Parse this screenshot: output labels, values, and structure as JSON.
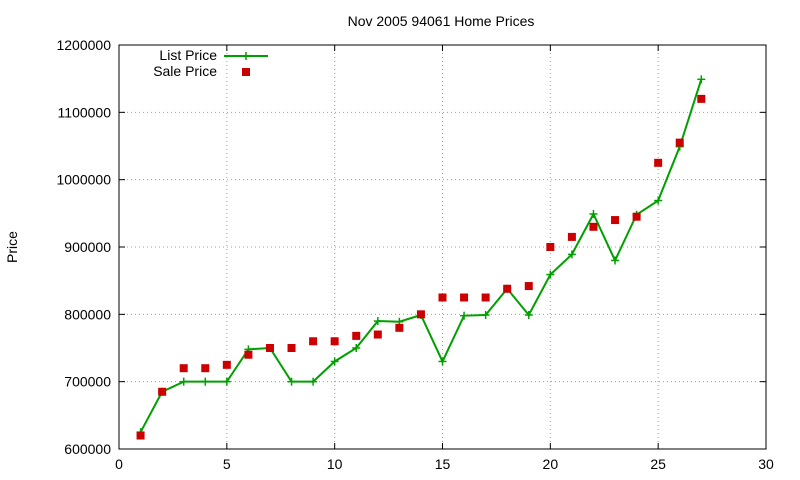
{
  "chart_data": {
    "type": "line",
    "title": "Nov 2005 94061 Home Prices",
    "xlabel": "",
    "ylabel": "Price",
    "xlim": [
      0,
      30
    ],
    "ylim": [
      600000,
      1200000
    ],
    "x_ticks": [
      0,
      5,
      10,
      15,
      20,
      25,
      30
    ],
    "y_ticks": [
      600000,
      700000,
      800000,
      900000,
      1000000,
      1100000,
      1200000
    ],
    "grid": true,
    "legend_position": "top-left",
    "series": [
      {
        "name": "List Price",
        "style": "linespoints",
        "marker": "plus",
        "color": "#00a000",
        "x": [
          1,
          2,
          3,
          4,
          5,
          6,
          7,
          8,
          9,
          10,
          11,
          12,
          13,
          14,
          15,
          16,
          17,
          18,
          19,
          20,
          21,
          22,
          23,
          24,
          25,
          26,
          27
        ],
        "values": [
          625000,
          685000,
          700000,
          700000,
          700000,
          748000,
          750000,
          700000,
          700000,
          730000,
          750000,
          790000,
          789000,
          799000,
          730000,
          798000,
          799000,
          838000,
          799000,
          859000,
          889000,
          949000,
          880000,
          948000,
          969000,
          1049000,
          1149000
        ]
      },
      {
        "name": "Sale Price",
        "style": "points",
        "marker": "square",
        "color": "#cc0000",
        "x": [
          1,
          2,
          3,
          4,
          5,
          6,
          7,
          8,
          9,
          10,
          11,
          12,
          13,
          14,
          15,
          16,
          17,
          18,
          19,
          20,
          21,
          22,
          23,
          24,
          25,
          26,
          27
        ],
        "values": [
          620000,
          685000,
          720000,
          720000,
          725000,
          740000,
          750000,
          750000,
          760000,
          760000,
          768000,
          770000,
          780000,
          800000,
          825000,
          825000,
          825000,
          838000,
          842000,
          900000,
          915000,
          930000,
          940000,
          945000,
          1025000,
          1055000,
          1120000
        ]
      }
    ]
  }
}
